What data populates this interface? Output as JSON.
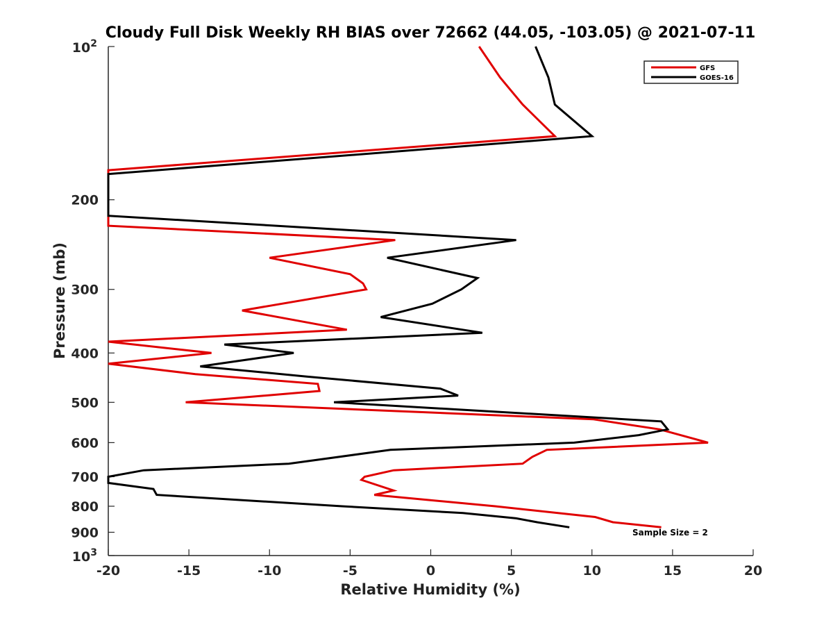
{
  "chart_data": {
    "type": "line",
    "title": "Cloudy Full Disk Weekly RH BIAS over 72662 (44.05, -103.05) @ 2021-07-11",
    "xlabel": "Relative Humidity (%)",
    "ylabel": "Pressure (mb)",
    "xlim": [
      -20,
      20
    ],
    "ylim": [
      100,
      1000
    ],
    "y_scale": "log",
    "y_reversed": true,
    "grid": false,
    "legend_position": "top-right",
    "x_ticks": [
      -20,
      -15,
      -10,
      -5,
      0,
      5,
      10,
      15,
      20
    ],
    "x_tick_labels": [
      "-20",
      "-15",
      "-10",
      "-5",
      "0",
      "5",
      "10",
      "15",
      "20"
    ],
    "y_ticks": [
      200,
      300,
      400,
      500,
      600,
      700,
      800,
      900
    ],
    "y_tick_labels": [
      "200",
      "300",
      "400",
      "500",
      "600",
      "700",
      "800",
      "900"
    ],
    "y_top_label": {
      "base": "10",
      "exp": "2"
    },
    "y_bottom_label": {
      "base": "10",
      "exp": "3"
    },
    "annotation": "Sample Size = 2",
    "series": [
      {
        "name": "GFS",
        "color": "#e00000",
        "points": [
          [
            3.0,
            100
          ],
          [
            4.3,
            115
          ],
          [
            5.7,
            130
          ],
          [
            7.7,
            150
          ],
          [
            -20,
            175
          ],
          [
            -20,
            225
          ],
          [
            -2.2,
            240
          ],
          [
            -10.0,
            260
          ],
          [
            -5.0,
            280
          ],
          [
            -4.2,
            292
          ],
          [
            -4.0,
            300
          ],
          [
            -11.7,
            330
          ],
          [
            -5.2,
            360
          ],
          [
            -20,
            380
          ],
          [
            -13.6,
            400
          ],
          [
            -20,
            420
          ],
          [
            -14.6,
            440
          ],
          [
            -7.0,
            460
          ],
          [
            -6.9,
            475
          ],
          [
            -15.2,
            500
          ],
          [
            10.1,
            540
          ],
          [
            14.2,
            565
          ],
          [
            17.2,
            600
          ],
          [
            7.2,
            620
          ],
          [
            6.3,
            640
          ],
          [
            5.7,
            660
          ],
          [
            -2.3,
            680
          ],
          [
            -4.1,
            700
          ],
          [
            -4.3,
            710
          ],
          [
            -2.3,
            745
          ],
          [
            -3.5,
            760
          ],
          [
            4.0,
            800
          ],
          [
            10.2,
            840
          ],
          [
            11.3,
            860
          ],
          [
            14.3,
            880
          ]
        ]
      },
      {
        "name": "GOES-16",
        "color": "#000000",
        "points": [
          [
            6.5,
            100
          ],
          [
            7.3,
            115
          ],
          [
            7.7,
            130
          ],
          [
            10.0,
            150
          ],
          [
            -20,
            178
          ],
          [
            -20,
            215
          ],
          [
            5.3,
            240
          ],
          [
            -2.7,
            260
          ],
          [
            2.9,
            285
          ],
          [
            1.9,
            300
          ],
          [
            0.1,
            320
          ],
          [
            -3.1,
            340
          ],
          [
            3.2,
            365
          ],
          [
            -12.8,
            385
          ],
          [
            -8.5,
            400
          ],
          [
            -14.3,
            425
          ],
          [
            -7.7,
            445
          ],
          [
            0.6,
            470
          ],
          [
            1.7,
            485
          ],
          [
            -6.0,
            500
          ],
          [
            14.3,
            545
          ],
          [
            14.7,
            565
          ],
          [
            12.9,
            580
          ],
          [
            8.9,
            600
          ],
          [
            -2.5,
            620
          ],
          [
            -8.8,
            660
          ],
          [
            -17.8,
            680
          ],
          [
            -20,
            700
          ],
          [
            -20,
            720
          ],
          [
            -17.2,
            740
          ],
          [
            -17.0,
            760
          ],
          [
            -5.5,
            800
          ],
          [
            2.0,
            825
          ],
          [
            5.3,
            845
          ],
          [
            6.6,
            860
          ],
          [
            8.6,
            880
          ]
        ]
      }
    ]
  }
}
